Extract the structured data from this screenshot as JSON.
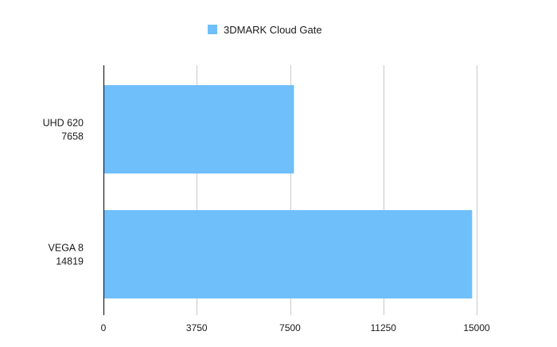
{
  "chart_data": {
    "type": "bar",
    "orientation": "horizontal",
    "categories": [
      "UHD 620",
      "VEGA 8"
    ],
    "category_labels": [
      [
        "UHD 620",
        "7658"
      ],
      [
        "VEGA 8",
        "14819"
      ]
    ],
    "series": [
      {
        "name": "3DMARK Cloud Gate",
        "values": [
          7658,
          14819
        ],
        "color": "#6fbffa"
      }
    ],
    "xlim": [
      0,
      15000
    ],
    "xticks": [
      0,
      3750,
      7500,
      11250,
      15000
    ],
    "xtick_labels": [
      "0",
      "3750",
      "7500",
      "11250",
      "15000"
    ],
    "grid": "vertical",
    "legend_position": "top-center",
    "title": "",
    "xlabel": "",
    "ylabel": ""
  }
}
